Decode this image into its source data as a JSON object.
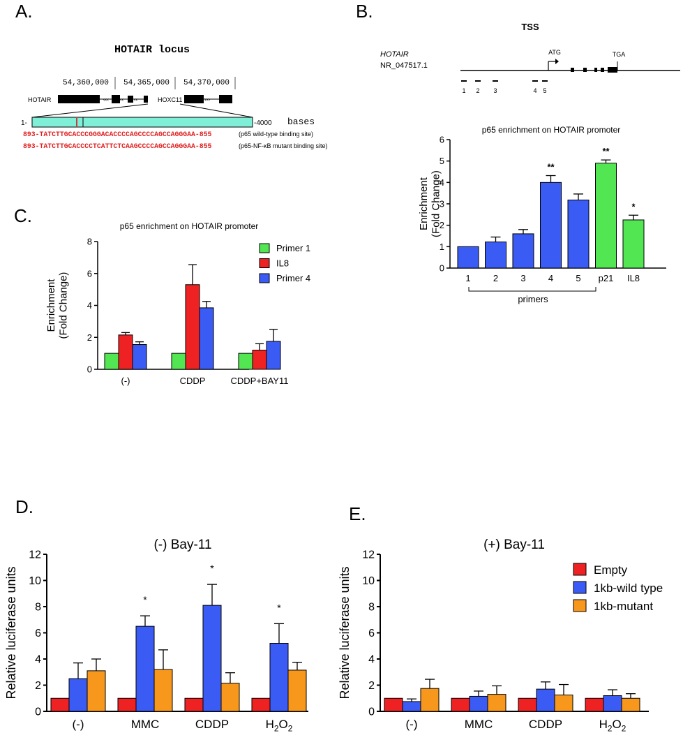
{
  "panelA": {
    "letter": "A.",
    "title": "HOTAIR locus",
    "coords": [
      "54,360,000",
      "54,365,000",
      "54,370,000"
    ],
    "gene1": "HOTAIR",
    "gene2": "HOXC11",
    "start": "1-",
    "end": "-4000",
    "unit": "bases",
    "seq1": "893-TATCTTGCACCCGGGACACCCCAGCCCCAGCCAGGGAA-855",
    "seq1_label": "(p65 wild-type binding site)",
    "seq2": "893-TATCTTGCACCCCTCATTCTCAAGCCCCAGCCAGGGAA-855",
    "seq2_label": "(p65-NF-κB mutant binding site)"
  },
  "panelB": {
    "letter": "B.",
    "tss": "TSS",
    "gene": "HOTAIR",
    "accession": "NR_047517.1",
    "atg": "ATG",
    "tga": "TGA",
    "primer_ids": [
      "1",
      "2",
      "3",
      "4",
      "5"
    ]
  },
  "panelC_letter": "C.",
  "panelD_letter": "D.",
  "panelE_letter": "E.",
  "chart_data": [
    {
      "id": "B",
      "type": "bar",
      "title": "p65 enrichment on HOTAIR promoter",
      "ylabel": [
        "Enrichment",
        "(Fold Change)"
      ],
      "xlabel": "primers",
      "categories": [
        "1",
        "2",
        "3",
        "4",
        "5",
        "p21",
        "IL8"
      ],
      "values": [
        1.0,
        1.22,
        1.6,
        4.0,
        3.18,
        4.9,
        2.25
      ],
      "errors": [
        0,
        0.23,
        0.2,
        0.32,
        0.28,
        0.15,
        0.22
      ],
      "colors": [
        "#3b5bf5",
        "#3b5bf5",
        "#3b5bf5",
        "#3b5bf5",
        "#3b5bf5",
        "#52e652",
        "#52e652"
      ],
      "significance": [
        "",
        "",
        "",
        "**",
        "",
        "**",
        "*"
      ],
      "ylim": [
        0,
        6
      ],
      "yticks": [
        "0",
        "1",
        "2",
        "3",
        "4",
        "5",
        "6"
      ]
    },
    {
      "id": "C",
      "type": "bar",
      "title": "p65 enrichment on HOTAIR promoter",
      "ylabel": [
        "Enrichment",
        "(Fold Change)"
      ],
      "categories": [
        "(-)",
        "CDDP",
        "CDDP+BAY11"
      ],
      "series": [
        {
          "name": "Primer 1",
          "color": "#52e652",
          "values": [
            1,
            1,
            1
          ],
          "errors": [
            0,
            0,
            0
          ]
        },
        {
          "name": "IL8",
          "color": "#ee2222",
          "values": [
            2.15,
            5.3,
            1.2
          ],
          "errors": [
            0.15,
            1.25,
            0.4
          ]
        },
        {
          "name": "Primer 4",
          "color": "#3b5bf5",
          "values": [
            1.55,
            3.85,
            1.75
          ],
          "errors": [
            0.17,
            0.4,
            0.75
          ]
        }
      ],
      "ylim": [
        0,
        8
      ],
      "yticks": [
        "0",
        "2",
        "4",
        "6",
        "8"
      ]
    },
    {
      "id": "D",
      "type": "bar",
      "title": "(-) Bay-11",
      "ylabel": "Relative luciferase units",
      "categories": [
        "(-)",
        "MMC",
        "CDDP",
        "H2O2"
      ],
      "series": [
        {
          "name": "Empty",
          "color": "#ee2222",
          "values": [
            1,
            1,
            1,
            1
          ],
          "errors": [
            0,
            0,
            0,
            0
          ]
        },
        {
          "name": "1kb-wild type",
          "color": "#3b5bf5",
          "values": [
            2.5,
            6.5,
            8.1,
            5.2
          ],
          "errors": [
            1.2,
            0.8,
            1.6,
            1.5
          ]
        },
        {
          "name": "1kb-mutant",
          "color": "#f7981d",
          "values": [
            3.1,
            3.2,
            2.15,
            3.15
          ],
          "errors": [
            0.9,
            1.5,
            0.8,
            0.6
          ]
        }
      ],
      "significance": [
        "",
        "*",
        "*",
        "*"
      ],
      "ylim": [
        0,
        12
      ],
      "yticks": [
        "0",
        "2",
        "4",
        "6",
        "8",
        "10",
        "12"
      ]
    },
    {
      "id": "E",
      "type": "bar",
      "title": "(+) Bay-11",
      "ylabel": "Relative luciferase units",
      "categories": [
        "(-)",
        "MMC",
        "CDDP",
        "H2O2"
      ],
      "series": [
        {
          "name": "Empty",
          "color": "#ee2222",
          "values": [
            1,
            1,
            1,
            1
          ],
          "errors": [
            0,
            0,
            0,
            0
          ]
        },
        {
          "name": "1kb-wild type",
          "color": "#3b5bf5",
          "values": [
            0.75,
            1.15,
            1.7,
            1.2
          ],
          "errors": [
            0.2,
            0.4,
            0.55,
            0.45
          ]
        },
        {
          "name": "1kb-mutant",
          "color": "#f7981d",
          "values": [
            1.75,
            1.3,
            1.25,
            1.0
          ],
          "errors": [
            0.7,
            0.65,
            0.8,
            0.35
          ]
        }
      ],
      "ylim": [
        0,
        12
      ],
      "yticks": [
        "0",
        "2",
        "4",
        "6",
        "8",
        "10",
        "12"
      ]
    }
  ]
}
